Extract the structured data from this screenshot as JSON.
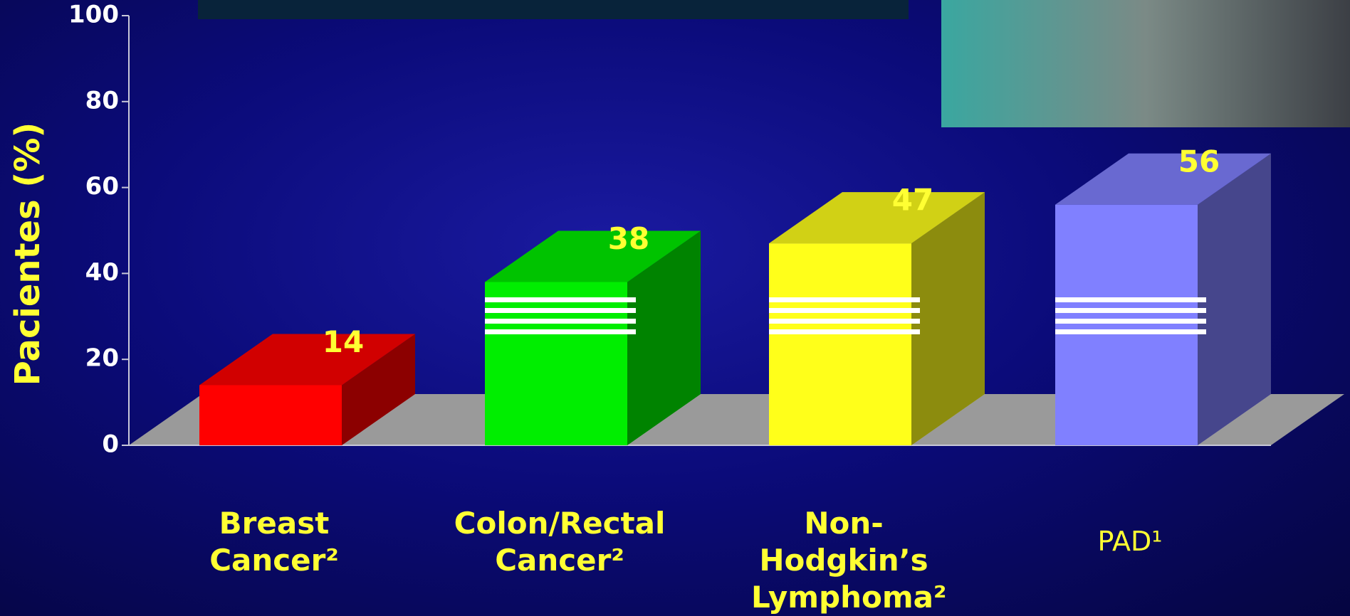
{
  "chart_data": {
    "type": "bar3d",
    "ylabel": "Pacientes (%)",
    "categories": [
      "Breast Cancer²",
      "Colon/Rectal Cancer²",
      "Non-Hodgkin’s Lymphoma²",
      "PAD¹"
    ],
    "values": [
      14,
      38,
      47,
      56
    ],
    "colors": [
      "#ff0000",
      "#00ee00",
      "#ffff1a",
      "#8080ff"
    ],
    "ylim": [
      0,
      100
    ],
    "yticks": [
      0,
      20,
      40,
      60,
      80,
      100
    ]
  }
}
